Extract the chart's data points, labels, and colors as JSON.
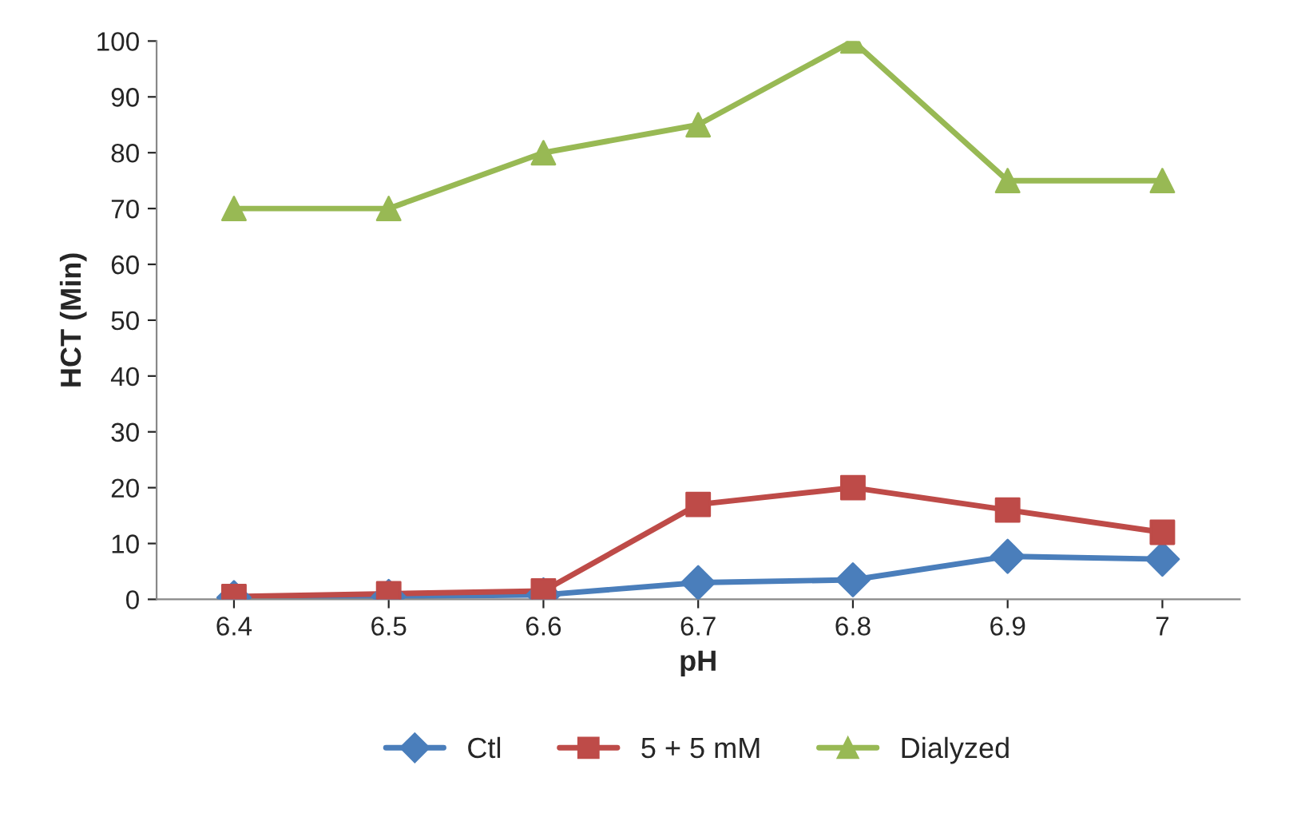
{
  "chart_data": {
    "type": "line",
    "xlabel": "pH",
    "ylabel": "HCT (Min)",
    "categories": [
      "6.4",
      "6.5",
      "6.6",
      "6.7",
      "6.8",
      "6.9",
      "7"
    ],
    "series": [
      {
        "name": "Ctl",
        "color": "#4a7ebb",
        "marker": "diamond",
        "values": [
          0.3,
          0.5,
          0.8,
          3,
          3.5,
          7.7,
          7.2
        ]
      },
      {
        "name": "5 + 5 mM",
        "color": "#be4b48",
        "marker": "square",
        "values": [
          0.5,
          1,
          1.5,
          17,
          20,
          16,
          12
        ]
      },
      {
        "name": "Dialyzed",
        "color": "#98b954",
        "marker": "triangle",
        "values": [
          70,
          70,
          80,
          85,
          100,
          75,
          75
        ]
      }
    ],
    "ylim": [
      0,
      100
    ],
    "yticks": [
      0,
      10,
      20,
      30,
      40,
      50,
      60,
      70,
      80,
      90,
      100
    ],
    "grid": false,
    "legend": "bottom",
    "line_style": "solid"
  }
}
